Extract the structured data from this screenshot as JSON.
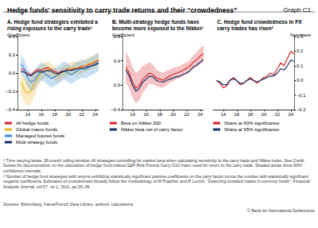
{
  "title": "Hedge funds' sensitivity to carry trade returns and their “crowdedness”",
  "graph_label": "Graph C1",
  "footnotes": [
    {
      "mark": "1",
      "text": "Time varying betas, 36-month rolling window. All strategies controlling for market beta when calculating sensitivity to the carry trade and Nikkei index. See Credit Suisse for documentation on the calculation of hedge fund indices.S&P Risk Premia Carry G10 Index used for return to the carry trade. Shaded areas show 90% confidence intervals."
    },
    {
      "mark": "2",
      "text": "Number of hedge fund strategies with returns exhibiting statistically significant positive coefficients on the carry factor minus the number with statistically significant negative coefficients. Estimates of crowdedness broadly follow the methodology of M Pojarliev and R Levich, “Detecting crowded trades in currency funds”, Financial Analysts Journal, vol 67, no 1, 2011, pp 26–39."
    }
  ],
  "sources": "Sources: Bloomberg; Fama/French Data Library; authors' calculations.",
  "copyright": "© Bank for International Settlements",
  "chart_data": [
    {
      "type": "line",
      "title": "A. Hedge fund strategies exhibited a rising exposure to the carry trade¹",
      "y_label": "Coefficient",
      "x": [
        2013,
        2013.5,
        2014,
        2014.5,
        2015,
        2015.5,
        2016,
        2016.5,
        2017,
        2017.5,
        2018,
        2018.5,
        2019,
        2019.5,
        2020,
        2020.5,
        2021,
        2021.5,
        2022,
        2022.5,
        2023,
        2023.5,
        2024,
        2024.5
      ],
      "xlim": [
        2012.5,
        2024.5
      ],
      "xticks": [
        {
          "value": 2014,
          "label": "14"
        },
        {
          "value": 2016,
          "label": "16"
        },
        {
          "value": 2018,
          "label": "18"
        },
        {
          "value": 2020,
          "label": "20"
        },
        {
          "value": 2022,
          "label": "22"
        },
        {
          "value": 2024,
          "label": "24"
        }
      ],
      "ylim": [
        -0.4,
        0.4
      ],
      "yticks": [
        {
          "value": -0.4,
          "label": "–0.4"
        },
        {
          "value": -0.2,
          "label": "–0.2"
        },
        {
          "value": 0,
          "label": "0.0"
        },
        {
          "value": 0.2,
          "label": "0.2"
        },
        {
          "value": 0.4,
          "label": "0.4"
        }
      ],
      "grid": false,
      "legend": "bottom",
      "series": [
        {
          "name": "All hedge funds",
          "color": "#d9262c",
          "values": [
            0.05,
            0.03,
            0.0,
            -0.02,
            0.02,
            0.04,
            0.03,
            0.05,
            0.06,
            0.04,
            0.02,
            0.0,
            0.02,
            0.03,
            0.05,
            0.04,
            0.05,
            0.06,
            0.07,
            0.08,
            0.09,
            0.1,
            0.12,
            0.14
          ]
        },
        {
          "name": "Global macro funds",
          "color": "#f0b323",
          "values": [
            -0.1,
            -0.18,
            -0.22,
            -0.2,
            -0.12,
            -0.05,
            0.0,
            0.03,
            0.05,
            0.02,
            0.0,
            -0.03,
            0.0,
            0.02,
            0.04,
            0.05,
            0.06,
            0.05,
            0.06,
            0.08,
            0.1,
            0.11,
            0.13,
            0.15
          ],
          "lower": [
            -0.22,
            -0.32,
            -0.36,
            -0.34,
            -0.25,
            -0.16,
            -0.09,
            -0.05,
            -0.03,
            -0.06,
            -0.08,
            -0.1,
            -0.07,
            -0.05,
            -0.03,
            -0.02,
            -0.01,
            -0.02,
            -0.01,
            0.01,
            0.03,
            0.04,
            0.06,
            0.07
          ],
          "upper": [
            0.02,
            -0.04,
            -0.08,
            -0.06,
            0.01,
            0.06,
            0.09,
            0.11,
            0.13,
            0.1,
            0.08,
            0.04,
            0.07,
            0.09,
            0.11,
            0.12,
            0.13,
            0.12,
            0.13,
            0.15,
            0.17,
            0.18,
            0.2,
            0.23
          ]
        },
        {
          "name": "Managed futures funds",
          "color": "#3d8fd6",
          "values": [
            0.1,
            0.05,
            -0.05,
            -0.1,
            -0.08,
            -0.02,
            0.02,
            0.0,
            -0.03,
            -0.06,
            -0.04,
            -0.02,
            0.01,
            0.03,
            0.0,
            -0.02,
            0.01,
            0.03,
            0.05,
            0.04,
            0.06,
            0.08,
            0.1,
            0.12
          ],
          "lower": [
            0.0,
            -0.05,
            -0.15,
            -0.2,
            -0.18,
            -0.12,
            -0.08,
            -0.1,
            -0.13,
            -0.16,
            -0.14,
            -0.12,
            -0.09,
            -0.07,
            -0.1,
            -0.12,
            -0.09,
            -0.07,
            -0.05,
            -0.06,
            -0.04,
            -0.02,
            0.0,
            0.02
          ],
          "upper": [
            0.2,
            0.15,
            0.05,
            0.0,
            0.02,
            0.08,
            0.12,
            0.1,
            0.07,
            0.04,
            0.06,
            0.08,
            0.11,
            0.13,
            0.1,
            0.08,
            0.11,
            0.13,
            0.15,
            0.14,
            0.16,
            0.18,
            0.2,
            0.22
          ]
        },
        {
          "name": "Multi-strategy funds",
          "color": "#1c2f6b",
          "values": [
            0.02,
            0.01,
            -0.02,
            -0.03,
            0.0,
            0.02,
            0.01,
            0.02,
            0.03,
            0.02,
            0.0,
            -0.01,
            0.01,
            0.02,
            0.03,
            0.03,
            0.04,
            0.05,
            0.05,
            0.06,
            0.07,
            0.08,
            0.09,
            0.11
          ]
        }
      ]
    },
    {
      "type": "line",
      "title": "B. Multi-strategy hedge funds have become more exposed to the Nikkei¹",
      "y_label": "Coefficient",
      "x": [
        2013,
        2013.5,
        2014,
        2014.5,
        2015,
        2015.5,
        2016,
        2016.5,
        2017,
        2017.5,
        2018,
        2018.5,
        2019,
        2019.5,
        2020,
        2020.5,
        2021,
        2021.5,
        2022,
        2022.5,
        2023,
        2023.5,
        2024,
        2024.5
      ],
      "xlim": [
        2012.5,
        2024.5
      ],
      "xticks": [
        {
          "value": 2014,
          "label": "14"
        },
        {
          "value": 2016,
          "label": "16"
        },
        {
          "value": 2018,
          "label": "18"
        },
        {
          "value": 2020,
          "label": "20"
        },
        {
          "value": 2022,
          "label": "22"
        },
        {
          "value": 2024,
          "label": "24"
        }
      ],
      "ylim": [
        -0.4,
        0.8
      ],
      "yticks": [
        {
          "value": -0.4,
          "label": "–0.4"
        },
        {
          "value": 0,
          "label": "0.0"
        },
        {
          "value": 0.4,
          "label": "0.4"
        },
        {
          "value": 0.8,
          "label": "0.8"
        }
      ],
      "grid": false,
      "legend": "bottom",
      "series": [
        {
          "name": "Beta on Nikkei 300",
          "color": "#d9262c",
          "values": [
            0.3,
            0.2,
            0.05,
            -0.05,
            0.0,
            0.1,
            0.15,
            0.2,
            0.18,
            0.12,
            0.1,
            0.08,
            0.12,
            0.15,
            0.18,
            0.2,
            0.22,
            0.25,
            0.28,
            0.32,
            0.38,
            0.42,
            0.48,
            0.52
          ],
          "lower": [
            0.05,
            -0.05,
            -0.2,
            -0.3,
            -0.25,
            -0.12,
            -0.05,
            0.02,
            0.02,
            -0.02,
            -0.03,
            -0.04,
            0.0,
            0.04,
            0.07,
            0.1,
            0.12,
            0.15,
            0.18,
            0.22,
            0.27,
            0.3,
            0.35,
            0.38
          ],
          "upper": [
            0.55,
            0.45,
            0.3,
            0.2,
            0.25,
            0.32,
            0.35,
            0.38,
            0.34,
            0.26,
            0.23,
            0.2,
            0.24,
            0.26,
            0.29,
            0.3,
            0.32,
            0.35,
            0.38,
            0.42,
            0.49,
            0.54,
            0.61,
            0.66
          ]
        },
        {
          "name": "Nikkei beta net of carry factor",
          "color": "#1c2f6b",
          "values": [
            0.25,
            0.15,
            0.0,
            -0.1,
            -0.05,
            0.05,
            0.1,
            0.15,
            0.14,
            0.08,
            0.06,
            0.05,
            0.08,
            0.1,
            0.12,
            0.14,
            0.15,
            0.18,
            0.2,
            0.24,
            0.3,
            0.33,
            0.38,
            0.42
          ]
        }
      ]
    },
    {
      "type": "line",
      "title": "C. Hedge fund crowdedness in FX carry trades has risen²",
      "y_label": "Net share",
      "x": [
        2013,
        2013.5,
        2014,
        2014.5,
        2015,
        2015.5,
        2016,
        2016.5,
        2017,
        2017.5,
        2018,
        2018.5,
        2019,
        2019.5,
        2020,
        2020.5,
        2021,
        2021.5,
        2022,
        2022.5,
        2023,
        2023.5,
        2024,
        2024.5
      ],
      "xlim": [
        2012.5,
        2024.5
      ],
      "xticks": [
        {
          "value": 2014,
          "label": "14"
        },
        {
          "value": 2016,
          "label": "16"
        },
        {
          "value": 2018,
          "label": "18"
        },
        {
          "value": 2020,
          "label": "20"
        },
        {
          "value": 2022,
          "label": "22"
        },
        {
          "value": 2024,
          "label": "24"
        }
      ],
      "ylim": [
        -0.2,
        0.3
      ],
      "yticks": [
        {
          "value": -0.2,
          "label": "–0.2"
        },
        {
          "value": -0.1,
          "label": "–0.1"
        },
        {
          "value": 0,
          "label": "0.0"
        },
        {
          "value": 0.1,
          "label": "0.1"
        },
        {
          "value": 0.2,
          "label": "0.2"
        },
        {
          "value": 0.3,
          "label": "0.3"
        }
      ],
      "grid": false,
      "legend": "bottom",
      "series": [
        {
          "name": "Share at 90% significance",
          "color": "#d9262c",
          "values": [
            0.0,
            -0.02,
            -0.05,
            -0.04,
            0.0,
            0.02,
            0.0,
            -0.03,
            -0.02,
            0.0,
            0.02,
            0.0,
            -0.02,
            0.0,
            0.02,
            0.03,
            0.05,
            0.04,
            0.08,
            0.12,
            0.1,
            0.15,
            0.2,
            0.18
          ]
        },
        {
          "name": "Share at 95% significance",
          "color": "#1c2f6b",
          "values": [
            0.0,
            -0.01,
            -0.03,
            -0.03,
            0.0,
            0.01,
            0.0,
            -0.02,
            -0.02,
            0.0,
            0.01,
            0.0,
            -0.01,
            0.0,
            0.01,
            0.02,
            0.03,
            0.03,
            0.05,
            0.08,
            0.07,
            0.1,
            0.14,
            0.13
          ]
        }
      ]
    }
  ]
}
